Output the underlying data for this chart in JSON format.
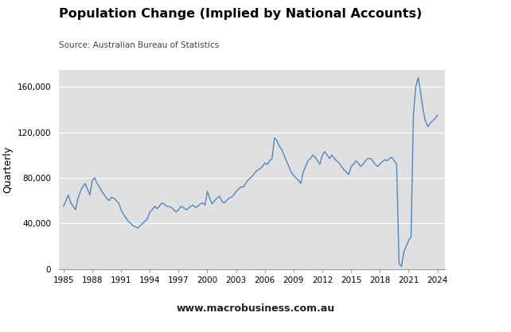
{
  "title": "Population Change (Implied by National Accounts)",
  "source": "Source: Australian Bureau of Statistics",
  "ylabel": "Quarterly",
  "website": "www.macrobusiness.com.au",
  "line_color": "#4f86c6",
  "background_color": "#e0e0e0",
  "fig_background": "#ffffff",
  "xlim": [
    1984.5,
    2024.75
  ],
  "ylim": [
    0,
    175000
  ],
  "yticks": [
    0,
    40000,
    80000,
    120000,
    160000
  ],
  "xticks": [
    1985,
    1988,
    1991,
    1994,
    1997,
    2000,
    2003,
    2006,
    2009,
    2012,
    2015,
    2018,
    2021,
    2024
  ],
  "macro_box_color": "#cc0000",
  "data": {
    "years": [
      1985.0,
      1985.25,
      1985.5,
      1985.75,
      1986.0,
      1986.25,
      1986.5,
      1986.75,
      1987.0,
      1987.25,
      1987.5,
      1987.75,
      1988.0,
      1988.25,
      1988.5,
      1988.75,
      1989.0,
      1989.25,
      1989.5,
      1989.75,
      1990.0,
      1990.25,
      1990.5,
      1990.75,
      1991.0,
      1991.25,
      1991.5,
      1991.75,
      1992.0,
      1992.25,
      1992.5,
      1992.75,
      1993.0,
      1993.25,
      1993.5,
      1993.75,
      1994.0,
      1994.25,
      1994.5,
      1994.75,
      1995.0,
      1995.25,
      1995.5,
      1995.75,
      1996.0,
      1996.25,
      1996.5,
      1996.75,
      1997.0,
      1997.25,
      1997.5,
      1997.75,
      1998.0,
      1998.25,
      1998.5,
      1998.75,
      1999.0,
      1999.25,
      1999.5,
      1999.75,
      2000.0,
      2000.25,
      2000.5,
      2000.75,
      2001.0,
      2001.25,
      2001.5,
      2001.75,
      2002.0,
      2002.25,
      2002.5,
      2002.75,
      2003.0,
      2003.25,
      2003.5,
      2003.75,
      2004.0,
      2004.25,
      2004.5,
      2004.75,
      2005.0,
      2005.25,
      2005.5,
      2005.75,
      2006.0,
      2006.25,
      2006.5,
      2006.75,
      2007.0,
      2007.25,
      2007.5,
      2007.75,
      2008.0,
      2008.25,
      2008.5,
      2008.75,
      2009.0,
      2009.25,
      2009.5,
      2009.75,
      2010.0,
      2010.25,
      2010.5,
      2010.75,
      2011.0,
      2011.25,
      2011.5,
      2011.75,
      2012.0,
      2012.25,
      2012.5,
      2012.75,
      2013.0,
      2013.25,
      2013.5,
      2013.75,
      2014.0,
      2014.25,
      2014.5,
      2014.75,
      2015.0,
      2015.25,
      2015.5,
      2015.75,
      2016.0,
      2016.25,
      2016.5,
      2016.75,
      2017.0,
      2017.25,
      2017.5,
      2017.75,
      2018.0,
      2018.25,
      2018.5,
      2018.75,
      2019.0,
      2019.25,
      2019.5,
      2019.75,
      2020.0,
      2020.25,
      2020.5,
      2020.75,
      2021.0,
      2021.25,
      2021.5,
      2021.75,
      2022.0,
      2022.25,
      2022.5,
      2022.75,
      2023.0,
      2023.25,
      2023.5,
      2023.75,
      2024.0
    ],
    "values": [
      55000,
      60000,
      65000,
      58000,
      55000,
      52000,
      62000,
      68000,
      72000,
      75000,
      70000,
      65000,
      78000,
      80000,
      75000,
      72000,
      68000,
      65000,
      62000,
      60000,
      63000,
      62000,
      60000,
      58000,
      52000,
      48000,
      45000,
      42000,
      40000,
      38000,
      37000,
      36000,
      38000,
      40000,
      42000,
      44000,
      50000,
      52000,
      55000,
      53000,
      55000,
      58000,
      57000,
      55000,
      55000,
      54000,
      52000,
      50000,
      52000,
      55000,
      54000,
      52000,
      53000,
      55000,
      56000,
      54000,
      55000,
      57000,
      58000,
      56000,
      68000,
      62000,
      57000,
      60000,
      62000,
      64000,
      60000,
      58000,
      60000,
      62000,
      63000,
      65000,
      68000,
      70000,
      72000,
      72000,
      75000,
      78000,
      80000,
      82000,
      85000,
      87000,
      88000,
      90000,
      93000,
      92000,
      95000,
      97000,
      115000,
      113000,
      108000,
      105000,
      100000,
      95000,
      90000,
      85000,
      82000,
      80000,
      78000,
      75000,
      85000,
      90000,
      95000,
      97000,
      100000,
      98000,
      95000,
      92000,
      100000,
      103000,
      100000,
      97000,
      100000,
      97000,
      95000,
      93000,
      90000,
      87000,
      85000,
      83000,
      90000,
      92000,
      95000,
      93000,
      90000,
      92000,
      95000,
      97000,
      97000,
      95000,
      92000,
      90000,
      92000,
      94000,
      96000,
      95000,
      97000,
      98000,
      95000,
      92000,
      5000,
      2000,
      15000,
      20000,
      25000,
      28000,
      135000,
      160000,
      168000,
      155000,
      140000,
      130000,
      125000,
      128000,
      130000,
      132000,
      135000
    ]
  }
}
